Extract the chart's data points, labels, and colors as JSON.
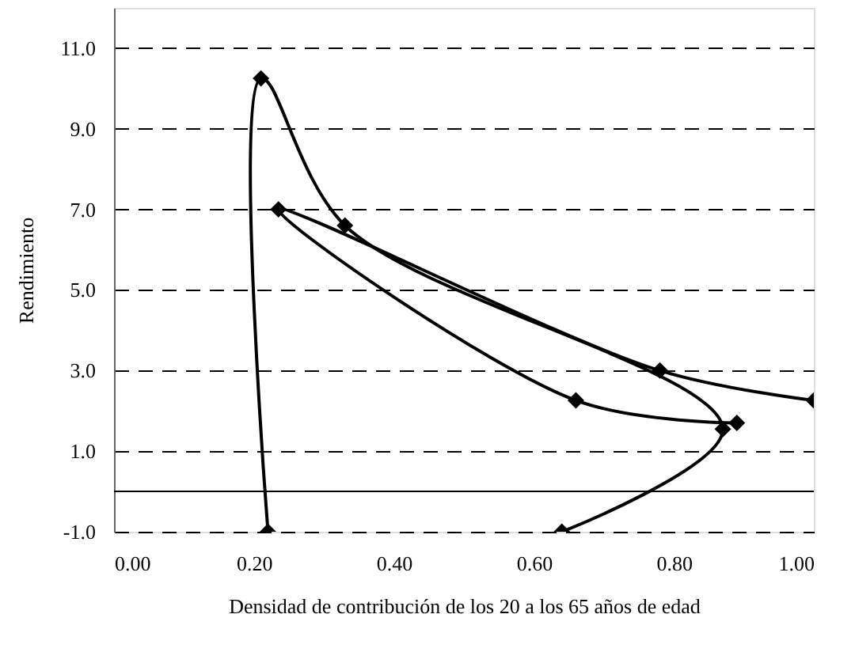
{
  "chart_data": {
    "type": "line",
    "xlabel": "Densidad de contribución de los 20 a los 65 años de edad",
    "ylabel": "Rendimiento",
    "series": [
      {
        "color": "#000000",
        "x": [
          0.22,
          0.21,
          0.33,
          0.87,
          0.64
        ],
        "values": [
          -1.0,
          10.25,
          6.6,
          1.55,
          -1.0
        ]
      },
      {
        "color": "#000000",
        "x": [
          1.0,
          0.78,
          0.235,
          0.66,
          0.89
        ],
        "values": [
          2.26,
          3.0,
          7.0,
          2.26,
          1.7
        ]
      }
    ],
    "xlim": [
      0,
      1.0
    ],
    "ylim": [
      -1.0,
      12.0
    ],
    "xticks": [
      {
        "value": 0,
        "label": "0.00"
      },
      {
        "value": 0.2,
        "label": "0.20"
      },
      {
        "value": 0.4,
        "label": "0.40"
      },
      {
        "value": 0.6,
        "label": "0.60"
      },
      {
        "value": 0.8,
        "label": "0.80"
      },
      {
        "value": 1.0,
        "label": "1.00"
      }
    ],
    "yticks": [
      {
        "value": -1,
        "label": "-1.0"
      },
      {
        "value": 1,
        "label": "1.0"
      },
      {
        "value": 3,
        "label": "3.0"
      },
      {
        "value": 5,
        "label": "5.0"
      },
      {
        "value": 7,
        "label": "7.0"
      },
      {
        "value": 9,
        "label": "9.0"
      },
      {
        "value": 11,
        "label": "11.0"
      }
    ],
    "ref_lines": [
      {
        "axis": "y",
        "value": 0,
        "color": "#000000",
        "line_style": "solid"
      }
    ],
    "grid": "y",
    "marker": "diamond",
    "line_style": "solid"
  }
}
